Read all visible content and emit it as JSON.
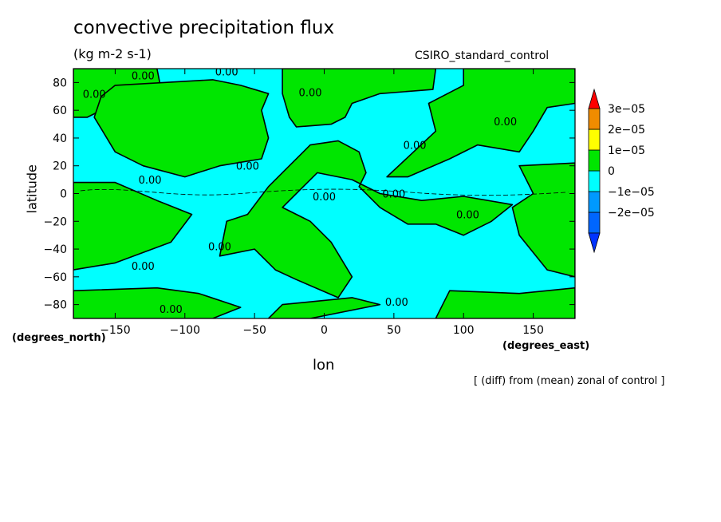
{
  "chart_data": {
    "type": "contour-map",
    "title": "convective precipitation flux",
    "units": "(kg m-2 s-1)",
    "dataset": "CSIRO_standard_control",
    "xlabel": "lon",
    "ylabel": "latitude",
    "xunits": "(degrees_east)",
    "yunits": "(degrees_north)",
    "footnote": "[ (diff) from (mean) zonal of control ]",
    "xlim": [
      -180,
      180
    ],
    "ylim": [
      -90,
      90
    ],
    "xticks": [
      -150,
      -100,
      -50,
      0,
      50,
      100,
      150
    ],
    "xtick_labels": [
      "−150",
      "−100",
      "−50",
      "0",
      "50",
      "100",
      "150"
    ],
    "yticks": [
      80,
      60,
      40,
      20,
      0,
      -20,
      -40,
      -60,
      -80
    ],
    "ytick_labels": [
      "80",
      "60",
      "40",
      "20",
      "0",
      "−20",
      "−40",
      "−60",
      "−80"
    ],
    "colorbar": {
      "levels": [
        {
          "label": "3e−05",
          "value": 3e-05,
          "color": "#f08c00"
        },
        {
          "label": "2e−05",
          "value": 2e-05,
          "color": "#ffff00"
        },
        {
          "label": "1e−05",
          "value": 1e-05,
          "color": "#00e600"
        },
        {
          "label": "0",
          "value": 0,
          "color": "#00ffff"
        },
        {
          "label": "−1e−05",
          "value": -1e-05,
          "color": "#0099ff"
        },
        {
          "label": "−2e−05",
          "value": -2e-05,
          "color": "#0066ff"
        }
      ],
      "over_color": "#ff0000",
      "under_color": "#0033ff",
      "bands_bottom_to_top": [
        "#0066ff",
        "#0099ff",
        "#00ffff",
        "#00e600",
        "#ffff00",
        "#f08c00"
      ]
    },
    "fill_colors": {
      "positive": "#00e600",
      "negative": "#00ffff"
    },
    "contour_labels": [
      {
        "text": "0.00",
        "lon": -130,
        "lat": 85
      },
      {
        "text": "0.00",
        "lon": -70,
        "lat": 88
      },
      {
        "text": "0.00",
        "lon": -165,
        "lat": 72
      },
      {
        "text": "0.00",
        "lon": -10,
        "lat": 73
      },
      {
        "text": "0.00",
        "lon": -125,
        "lat": 10
      },
      {
        "text": "0.00",
        "lon": -55,
        "lat": 20
      },
      {
        "text": "0.00",
        "lon": 0,
        "lat": -2
      },
      {
        "text": "0.00",
        "lon": 50,
        "lat": 0
      },
      {
        "text": "0.00",
        "lon": 65,
        "lat": 35
      },
      {
        "text": "0.00",
        "lon": 130,
        "lat": 52
      },
      {
        "text": "0.00",
        "lon": 103,
        "lat": -15
      },
      {
        "text": "0.00",
        "lon": -75,
        "lat": -38
      },
      {
        "text": "0.00",
        "lon": -130,
        "lat": -52
      },
      {
        "text": "0.00",
        "lon": -110,
        "lat": -83
      },
      {
        "text": "0.00",
        "lon": 52,
        "lat": -78
      }
    ],
    "regions_positive": [
      [
        [
          -180,
          90
        ],
        [
          -120,
          90
        ],
        [
          -118,
          80
        ],
        [
          -150,
          65
        ],
        [
          -170,
          55
        ],
        [
          -180,
          55
        ]
      ],
      [
        [
          -150,
          78
        ],
        [
          -80,
          82
        ],
        [
          -60,
          78
        ],
        [
          -40,
          72
        ],
        [
          -45,
          60
        ],
        [
          -42,
          48
        ],
        [
          -40,
          40
        ],
        [
          -45,
          25
        ],
        [
          -75,
          20
        ],
        [
          -100,
          12
        ],
        [
          -130,
          20
        ],
        [
          -150,
          30
        ],
        [
          -165,
          55
        ],
        [
          -160,
          70
        ]
      ],
      [
        [
          -30,
          90
        ],
        [
          80,
          90
        ],
        [
          78,
          75
        ],
        [
          40,
          72
        ],
        [
          20,
          65
        ],
        [
          15,
          55
        ],
        [
          5,
          50
        ],
        [
          -20,
          48
        ],
        [
          -25,
          55
        ],
        [
          -30,
          72
        ]
      ],
      [
        [
          100,
          90
        ],
        [
          180,
          90
        ],
        [
          180,
          65
        ],
        [
          160,
          62
        ],
        [
          150,
          45
        ],
        [
          140,
          30
        ],
        [
          110,
          35
        ],
        [
          90,
          25
        ],
        [
          60,
          12
        ],
        [
          45,
          12
        ],
        [
          80,
          45
        ],
        [
          75,
          65
        ],
        [
          100,
          78
        ]
      ],
      [
        [
          -10,
          35
        ],
        [
          10,
          38
        ],
        [
          25,
          30
        ],
        [
          30,
          15
        ],
        [
          25,
          5
        ],
        [
          40,
          -10
        ],
        [
          60,
          -22
        ],
        [
          80,
          -22
        ],
        [
          100,
          -30
        ],
        [
          120,
          -20
        ],
        [
          135,
          -8
        ],
        [
          100,
          -2
        ],
        [
          70,
          -5
        ],
        [
          40,
          0
        ],
        [
          20,
          10
        ],
        [
          -5,
          15
        ],
        [
          -30,
          -10
        ],
        [
          -10,
          -20
        ],
        [
          5,
          -35
        ],
        [
          20,
          -60
        ],
        [
          10,
          -75
        ],
        [
          -20,
          -62
        ],
        [
          -35,
          -55
        ],
        [
          -50,
          -40
        ],
        [
          -75,
          -45
        ],
        [
          -70,
          -20
        ],
        [
          -55,
          -15
        ],
        [
          -40,
          5
        ],
        [
          -25,
          20
        ]
      ],
      [
        [
          -180,
          8
        ],
        [
          -150,
          8
        ],
        [
          -120,
          -5
        ],
        [
          -95,
          -15
        ],
        [
          -110,
          -35
        ],
        [
          -150,
          -50
        ],
        [
          -180,
          -55
        ]
      ],
      [
        [
          140,
          20
        ],
        [
          180,
          22
        ],
        [
          180,
          -60
        ],
        [
          160,
          -55
        ],
        [
          140,
          -30
        ],
        [
          135,
          -10
        ],
        [
          150,
          0
        ]
      ],
      [
        [
          -180,
          -70
        ],
        [
          -120,
          -68
        ],
        [
          -90,
          -72
        ],
        [
          -60,
          -82
        ],
        [
          -80,
          -90
        ],
        [
          -180,
          -90
        ]
      ],
      [
        [
          -30,
          -80
        ],
        [
          20,
          -75
        ],
        [
          40,
          -80
        ],
        [
          -10,
          -90
        ],
        [
          -40,
          -90
        ]
      ],
      [
        [
          90,
          -70
        ],
        [
          140,
          -72
        ],
        [
          180,
          -68
        ],
        [
          180,
          -90
        ],
        [
          80,
          -90
        ]
      ]
    ]
  }
}
